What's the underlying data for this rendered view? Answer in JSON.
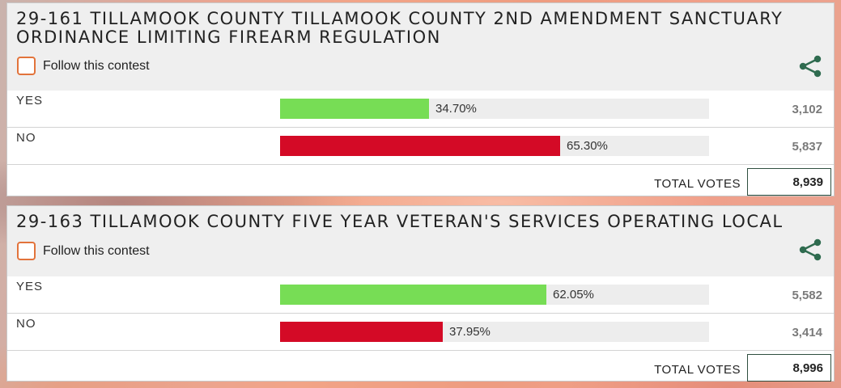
{
  "contests": [
    {
      "title": "29-161 TILLAMOOK COUNTY TILLAMOOK COUNTY 2ND AMENDMENT SANCTUARY ORDINANCE LIMITING FIREARM REGULATION",
      "follow_label": "Follow this contest",
      "choices": [
        {
          "label": "YES",
          "percent_text": "34.70%",
          "percent": 34.7,
          "votes": "3,102",
          "color": "#77dd55"
        },
        {
          "label": "NO",
          "percent_text": "65.30%",
          "percent": 65.3,
          "votes": "5,837",
          "color": "#d40a26"
        }
      ],
      "total_label": "TOTAL VOTES",
      "total_votes": "8,939"
    },
    {
      "title": "29-163 TILLAMOOK COUNTY FIVE YEAR VETERAN'S SERVICES OPERATING LOCAL",
      "follow_label": "Follow this contest",
      "choices": [
        {
          "label": "YES",
          "percent_text": "62.05%",
          "percent": 62.05,
          "votes": "5,582",
          "color": "#77dd55"
        },
        {
          "label": "NO",
          "percent_text": "37.95%",
          "percent": 37.95,
          "votes": "3,414",
          "color": "#d40a26"
        }
      ],
      "total_label": "TOTAL VOTES",
      "total_votes": "8,996"
    }
  ],
  "icons": {
    "checkbox": "checkbox-icon",
    "share": "share-icon"
  },
  "colors": {
    "accent": "#e2733b",
    "share": "#2f6b4f"
  }
}
